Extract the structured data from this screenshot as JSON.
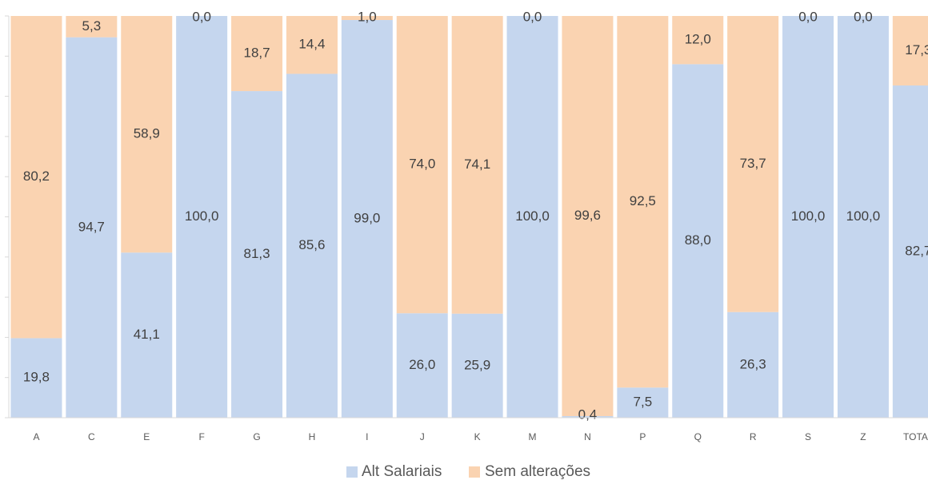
{
  "chart_data": {
    "type": "bar",
    "stacked": true,
    "normalized_percent": true,
    "categories": [
      "A",
      "C",
      "E",
      "F",
      "G",
      "H",
      "I",
      "J",
      "K",
      "M",
      "N",
      "P",
      "Q",
      "R",
      "S",
      "Z",
      "TOTAL"
    ],
    "series": [
      {
        "name": "Alt Salariais",
        "color": "#c5d6ee",
        "values": [
          19.8,
          94.7,
          41.1,
          100.0,
          81.3,
          85.6,
          99.0,
          26.0,
          25.9,
          100.0,
          0.4,
          7.5,
          88.0,
          26.3,
          100.0,
          100.0,
          82.7
        ],
        "labels": [
          "19,8",
          "94,7",
          "41,1",
          "100,0",
          "81,3",
          "85,6",
          "99,0",
          "26,0",
          "25,9",
          "100,0",
          "0,4",
          "7,5",
          "88,0",
          "26,3",
          "100,0",
          "100,0",
          "82,7"
        ]
      },
      {
        "name": "Sem alterações",
        "color": "#fad3b1",
        "values": [
          80.2,
          5.3,
          58.9,
          0.0,
          18.7,
          14.4,
          1.0,
          74.0,
          74.1,
          0.0,
          99.6,
          92.5,
          12.0,
          73.7,
          0.0,
          0.0,
          17.3
        ],
        "labels": [
          "80,2",
          "5,3",
          "58,9",
          "0,0",
          "18,7",
          "14,4",
          "1,0",
          "74,0",
          "74,1",
          "0,0",
          "99,6",
          "92,5",
          "12,0",
          "73,7",
          "0,0",
          "0,0",
          "17,3"
        ]
      }
    ],
    "ylim": [
      0,
      100
    ],
    "grid": false,
    "legend_position": "bottom-center"
  }
}
